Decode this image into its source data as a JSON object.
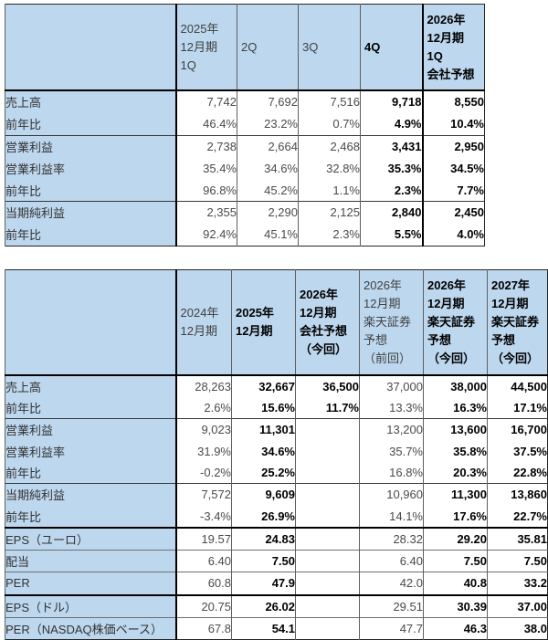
{
  "colors": {
    "header_fill": "#bdd7ee",
    "normal_text": "#4a4a4a",
    "bold_text": "#000000",
    "thick_border": "#000000"
  },
  "table1": {
    "header": [
      {
        "text": "",
        "bold": false
      },
      {
        "text": "2025年\n12月期\n1Q",
        "bold": false
      },
      {
        "text": "2Q",
        "bold": false
      },
      {
        "text": "3Q",
        "bold": false
      },
      {
        "text": "4Q",
        "bold": true
      },
      {
        "text": "2026年\n12月期\n1Q\n会社予想",
        "bold": true
      }
    ],
    "bold_cols": [
      false,
      false,
      false,
      true,
      true
    ],
    "rows": [
      {
        "label": "売上高",
        "cells": [
          "7,742",
          "7,692",
          "7,516",
          "9,718",
          "8,550"
        ]
      },
      {
        "label": "前年比",
        "cells": [
          "46.4%",
          "23.2%",
          "0.7%",
          "4.9%",
          "10.4%"
        ]
      },
      {
        "label": "営業利益",
        "sep": "medium",
        "cells": [
          "2,738",
          "2,664",
          "2,468",
          "3,431",
          "2,950"
        ]
      },
      {
        "label": "営業利益率",
        "cells": [
          "35.4%",
          "34.6%",
          "32.8%",
          "35.3%",
          "34.5%"
        ]
      },
      {
        "label": "前年比",
        "cells": [
          "96.8%",
          "45.2%",
          "1.1%",
          "2.3%",
          "7.7%"
        ]
      },
      {
        "label": "当期純利益",
        "sep": "medium",
        "cells": [
          "2,355",
          "2,290",
          "2,125",
          "2,840",
          "2,450"
        ]
      },
      {
        "label": "前年比",
        "cells": [
          "92.4%",
          "45.1%",
          "2.3%",
          "5.5%",
          "4.0%"
        ]
      }
    ]
  },
  "table2": {
    "header": [
      {
        "text": "",
        "bold": false
      },
      {
        "text": "2024年\n12月期",
        "bold": false
      },
      {
        "text": "2025年\n12月期",
        "bold": true
      },
      {
        "text": "2026年\n12月期\n会社予想\n（今回）",
        "bold": true
      },
      {
        "text": "2026年\n12月期\n楽天証券\n予想\n（前回）",
        "bold": false
      },
      {
        "text": "2026年\n12月期\n楽天証券\n予想\n（今回）",
        "bold": true
      },
      {
        "text": "2027年\n12月期\n楽天証券\n予想\n（今回）",
        "bold": true
      }
    ],
    "bold_cols": [
      false,
      true,
      true,
      false,
      true,
      true
    ],
    "rows": [
      {
        "label": "売上高",
        "cells": [
          "28,263",
          "32,667",
          "36,500",
          "37,000",
          "38,000",
          "44,500"
        ]
      },
      {
        "label": "前年比",
        "cells": [
          "2.6%",
          "15.6%",
          "11.7%",
          "13.3%",
          "16.3%",
          "17.1%"
        ]
      },
      {
        "label": "営業利益",
        "sep": "medium",
        "cells": [
          "9,023",
          "11,301",
          "",
          "13,200",
          "13,600",
          "16,700"
        ]
      },
      {
        "label": "営業利益率",
        "cells": [
          "31.9%",
          "34.6%",
          "",
          "35.7%",
          "35.8%",
          "37.5%"
        ]
      },
      {
        "label": "前年比",
        "cells": [
          "-0.2%",
          "25.2%",
          "",
          "16.8%",
          "20.3%",
          "22.8%"
        ]
      },
      {
        "label": "当期純利益",
        "sep": "medium",
        "cells": [
          "7,572",
          "9,609",
          "",
          "10,960",
          "11,300",
          "13,860"
        ]
      },
      {
        "label": "前年比",
        "cells": [
          "-3.4%",
          "26.9%",
          "",
          "14.1%",
          "17.6%",
          "22.7%"
        ]
      },
      {
        "label": "EPS（ユーロ）",
        "sep": "thick",
        "cells": [
          "19.57",
          "24.83",
          "",
          "28.32",
          "29.20",
          "35.81"
        ]
      },
      {
        "label": "配当",
        "sep": "thin",
        "cells": [
          "6.40",
          "7.50",
          "",
          "6.40",
          "7.50",
          "7.50"
        ]
      },
      {
        "label": "PER",
        "sep": "thin",
        "cells": [
          "60.8",
          "47.9",
          "",
          "42.0",
          "40.8",
          "33.2"
        ]
      },
      {
        "label": "EPS（ドル）",
        "sep": "thick",
        "cells": [
          "20.75",
          "26.02",
          "",
          "29.51",
          "30.39",
          "37.00"
        ]
      },
      {
        "label": "PER（NASDAQ株価ベース）",
        "sep": "thin",
        "cells": [
          "67.8",
          "54.1",
          "",
          "47.7",
          "46.3",
          "38.0"
        ]
      }
    ]
  }
}
